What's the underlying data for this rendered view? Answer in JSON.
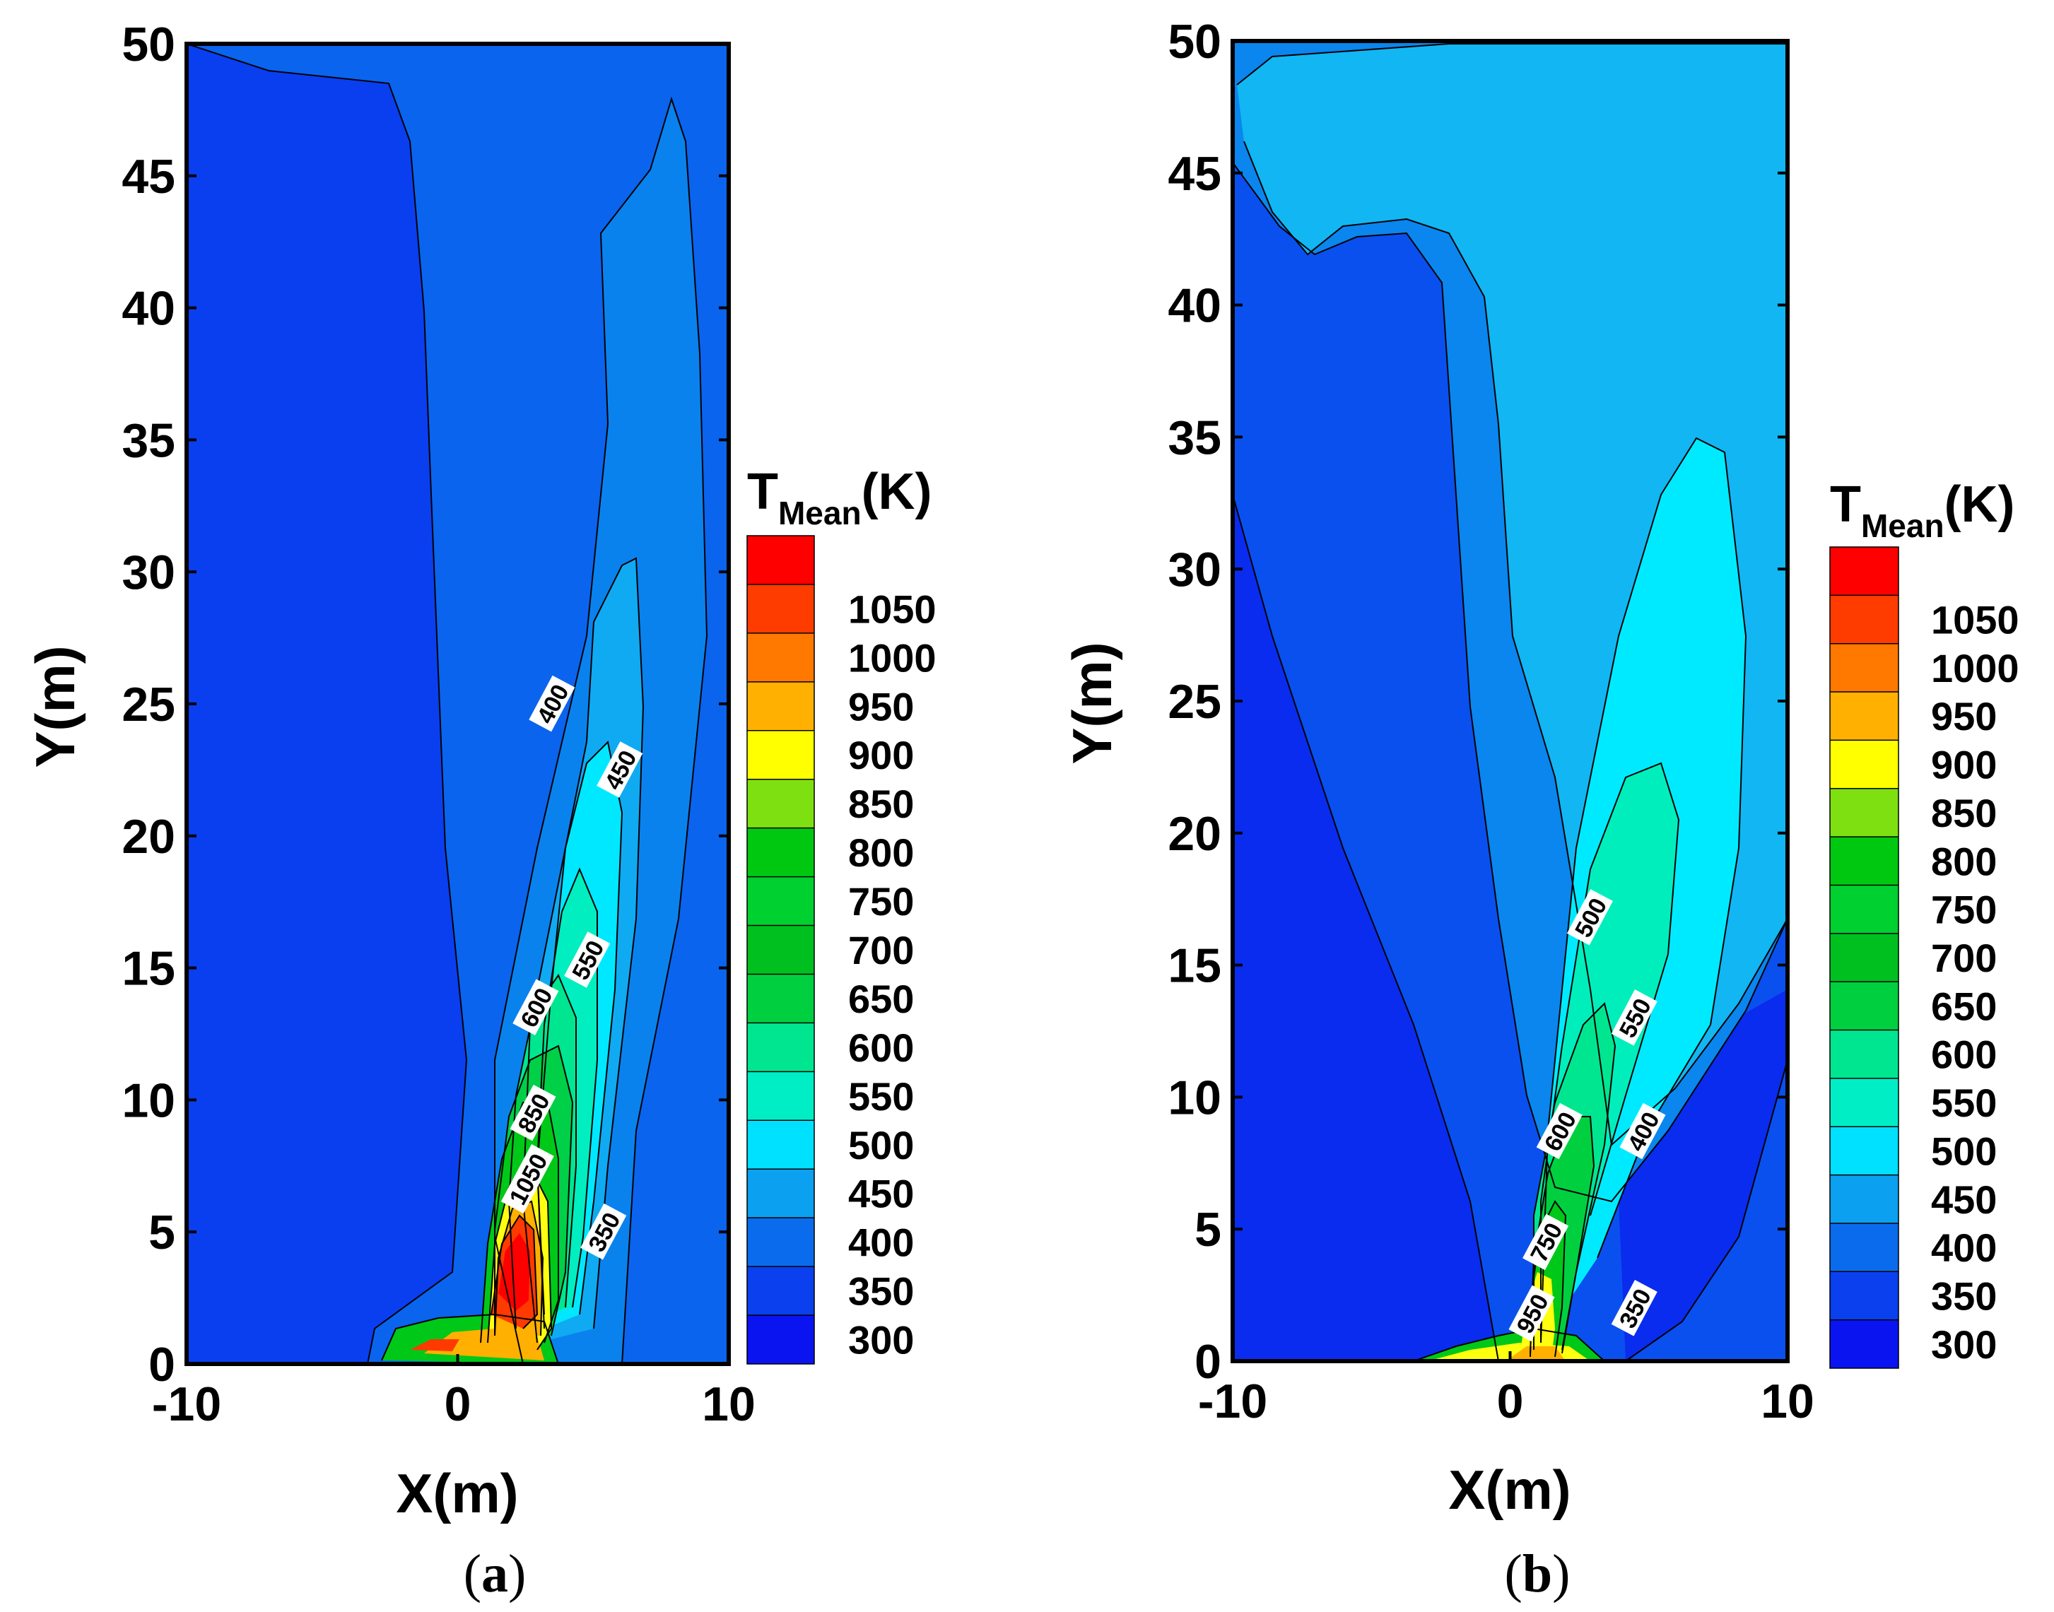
{
  "chart_data": [
    {
      "type": "heatmap",
      "panel_label": "a",
      "xlabel": "X(m)",
      "ylabel": "Y(m)",
      "xlim": [
        -10,
        10
      ],
      "ylim": [
        0,
        50
      ],
      "x_ticks": [
        -10,
        0,
        10
      ],
      "y_ticks": [
        0,
        5,
        10,
        15,
        20,
        25,
        30,
        35,
        40,
        45,
        50
      ],
      "colorbar": {
        "title_main": "T",
        "title_sub": "Mean",
        "title_unit": "(K)",
        "levels": [
          300,
          350,
          400,
          450,
          500,
          550,
          600,
          650,
          700,
          750,
          800,
          850,
          900,
          950,
          1000,
          1050
        ],
        "colors": [
          "#0a14f0",
          "#0a40ee",
          "#0a6ced",
          "#0ca0f0",
          "#00e0ff",
          "#00eec6",
          "#00e690",
          "#00d040",
          "#00c020",
          "#00d030",
          "#00c810",
          "#7ee010",
          "#ffff00",
          "#ffb000",
          "#ff7800",
          "#ff3c00",
          "#ff0000"
        ]
      },
      "contour_labels": [
        {
          "text": "400",
          "x": 3.5,
          "y": 25
        },
        {
          "text": "450",
          "x": 6.0,
          "y": 22.5
        },
        {
          "text": "550",
          "x": 4.8,
          "y": 15.3
        },
        {
          "text": "600",
          "x": 2.9,
          "y": 13.5
        },
        {
          "text": "850",
          "x": 2.8,
          "y": 9.5
        },
        {
          "text": "1050",
          "x": 2.6,
          "y": 7.0
        },
        {
          "text": "350",
          "x": 5.4,
          "y": 5.0
        }
      ]
    },
    {
      "type": "heatmap",
      "panel_label": "b",
      "xlabel": "X(m)",
      "ylabel": "Y(m)",
      "xlim": [
        -10,
        10
      ],
      "ylim": [
        0,
        50
      ],
      "x_ticks": [
        -10,
        0,
        10
      ],
      "y_ticks": [
        0,
        5,
        10,
        15,
        20,
        25,
        30,
        35,
        40,
        45,
        50
      ],
      "colorbar": {
        "title_main": "T",
        "title_sub": "Mean",
        "title_unit": "(K)",
        "levels": [
          300,
          350,
          400,
          450,
          500,
          550,
          600,
          650,
          700,
          750,
          800,
          850,
          900,
          950,
          1000,
          1050
        ],
        "colors": [
          "#0a14f0",
          "#0a40ee",
          "#0a6ced",
          "#0ca0f0",
          "#00e0ff",
          "#00eec6",
          "#00e690",
          "#00d040",
          "#00c020",
          "#00d030",
          "#00c810",
          "#7ee010",
          "#ffff00",
          "#ffb000",
          "#ff7800",
          "#ff3c00",
          "#ff0000"
        ]
      },
      "contour_labels": [
        {
          "text": "500",
          "x": 2.9,
          "y": 16.8
        },
        {
          "text": "550",
          "x": 4.5,
          "y": 13.0
        },
        {
          "text": "600",
          "x": 1.8,
          "y": 8.7
        },
        {
          "text": "400",
          "x": 4.8,
          "y": 8.7
        },
        {
          "text": "750",
          "x": 1.3,
          "y": 4.5
        },
        {
          "text": "950",
          "x": 0.8,
          "y": 1.8
        },
        {
          "text": "350",
          "x": 4.5,
          "y": 2.0
        }
      ]
    }
  ]
}
